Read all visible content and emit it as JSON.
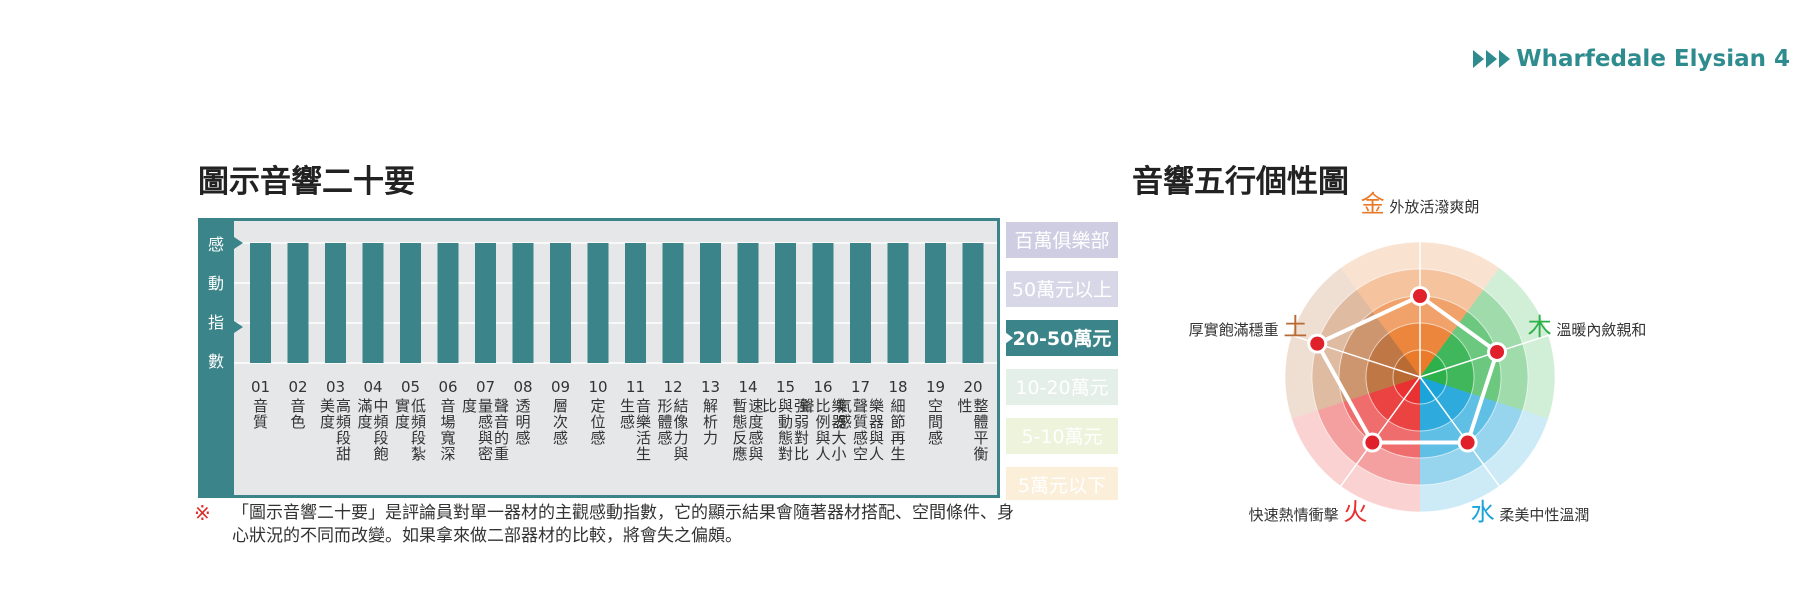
{
  "header": {
    "title": "Wharfedale Elysian 4"
  },
  "left_title": "圖示音響二十要",
  "right_title": "音響五行個性圖",
  "note": {
    "mark": "※",
    "text": "「圖示音響二十要」是評論員對單一器材的主觀感動指數，它的顯示結果會隨著器材搭配、空間條件、身心狀況的不同而改變。如果拿來做二部器材的比較，將會失之偏頗。"
  },
  "chart_data": [
    {
      "type": "bar",
      "ylabel": "感動指數",
      "categories": [
        {
          "no": "01",
          "name": "音質"
        },
        {
          "no": "02",
          "name": "音色"
        },
        {
          "no": "03",
          "name": "高頻段甜美度"
        },
        {
          "no": "04",
          "name": "中頻段飽滿度"
        },
        {
          "no": "05",
          "name": "低頻段紮實度"
        },
        {
          "no": "06",
          "name": "音場寬深"
        },
        {
          "no": "07",
          "name": "聲音的重量感與密度"
        },
        {
          "no": "08",
          "name": "透明感"
        },
        {
          "no": "09",
          "name": "層次感"
        },
        {
          "no": "10",
          "name": "定位感"
        },
        {
          "no": "11",
          "name": "音樂活生生感"
        },
        {
          "no": "12",
          "name": "結像力與形體感"
        },
        {
          "no": "13",
          "name": "解析力"
        },
        {
          "no": "14",
          "name": "速度感與暫態反應"
        },
        {
          "no": "15",
          "name": "強弱對比與動態對比"
        },
        {
          "no": "16",
          "name": "樂器大小比例與人聲"
        },
        {
          "no": "17",
          "name": "樂器與人聲質感空氣感"
        },
        {
          "no": "18",
          "name": "細節再生"
        },
        {
          "no": "19",
          "name": "空間感"
        },
        {
          "no": "20",
          "name": "整體平衡性"
        }
      ],
      "values": [
        3,
        3,
        3,
        3,
        3,
        3,
        3,
        3,
        3,
        3,
        3,
        3,
        3,
        3,
        3,
        3,
        3,
        3,
        3,
        3
      ],
      "price_levels": [
        "百萬俱樂部",
        "50萬元以上",
        "20-50萬元",
        "10-20萬元",
        "5-10萬元",
        "5萬元以下"
      ],
      "level_colors": [
        "#cfcde2",
        "#d7d7e8",
        "#3b8489",
        "#e4efe7",
        "#eef3dc",
        "#fbefd9"
      ],
      "selected_level": "20-50萬元",
      "colors": {
        "frame": "#3b8489",
        "bar": "#3b8489",
        "panel": "#e6e7e8"
      }
    },
    {
      "type": "radar",
      "elements": [
        {
          "char": "金",
          "desc": "外放活潑爽朗",
          "color": "#ea7a2a",
          "value": 0.6
        },
        {
          "char": "木",
          "desc": "溫暖內斂親和",
          "color": "#2db04a",
          "value": 0.6
        },
        {
          "char": "水",
          "desc": "柔美中性溫潤",
          "color": "#1aa3d9",
          "value": 0.6
        },
        {
          "char": "火",
          "desc": "快速熱情衝擊",
          "color": "#e8302f",
          "value": 0.6
        },
        {
          "char": "土",
          "desc": "厚實飽滿穩重",
          "color": "#b86a33",
          "value": 0.8
        }
      ]
    }
  ]
}
